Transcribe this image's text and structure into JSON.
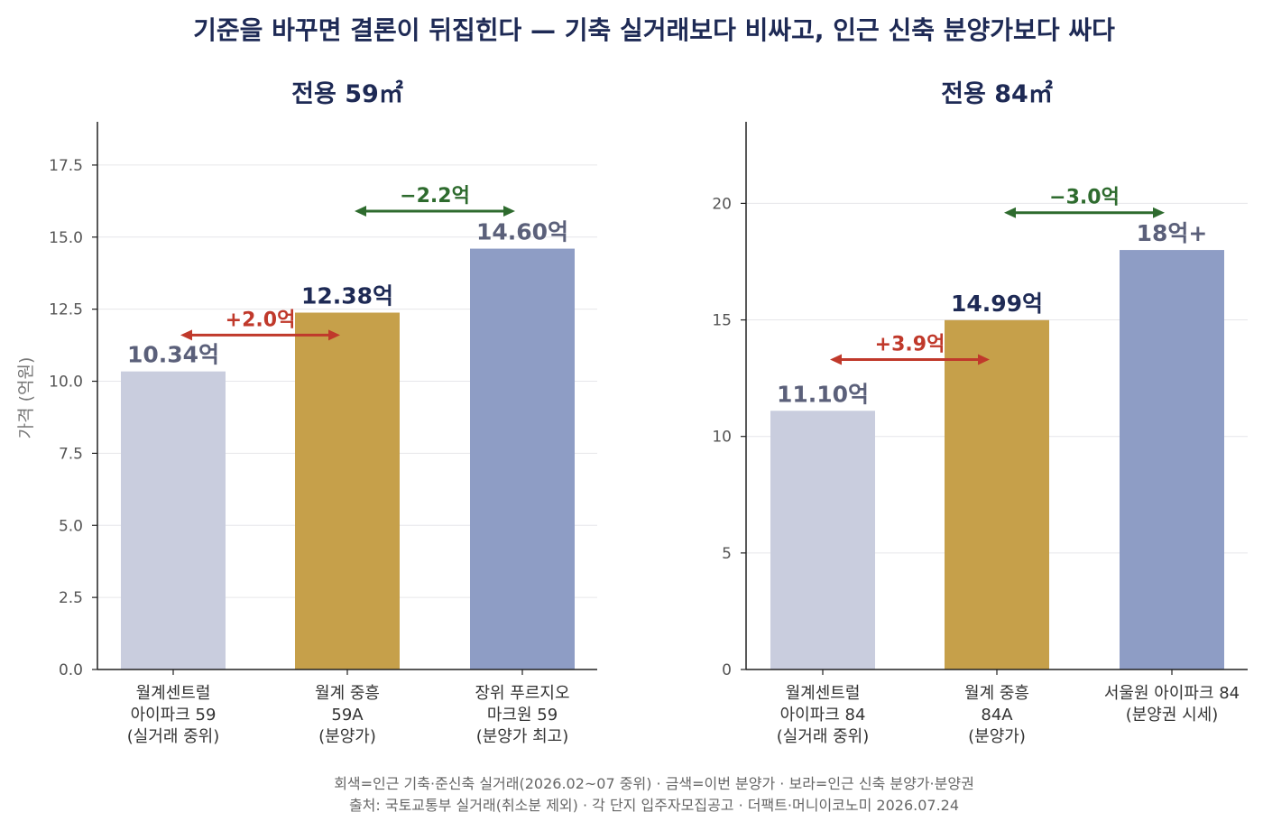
{
  "title": "기준을 바꾸면 결론이 뒤집힌다 — 기축 실거래보다 비싸고, 인근 신축 분양가보다 싸다",
  "ylabel": "가격 (억원)",
  "footer": {
    "line1": "회색=인근 기축·준신축 실거래(2026.02~07 중위) · 금색=이번 분양가 · 보라=인근 신축 분양가·분양권",
    "line2": "출처: 국토교통부 실거래(취소분 제외) · 각 단지 입주자모집공고 · 더팩트·머니이코노미 2026.07.24"
  },
  "colors": {
    "gray": "#c9cdde",
    "gold": "#c6a04a",
    "purple": "#8e9dc5",
    "plus": "#c0392b",
    "minus": "#2e6b2e",
    "title": "#1e2a55"
  },
  "chart_data": [
    {
      "type": "bar",
      "title": "전용 59㎡",
      "ylabel": "가격 (억원)",
      "ylim": [
        0,
        19
      ],
      "yticks": [
        "0.0",
        "2.5",
        "5.0",
        "7.5",
        "10.0",
        "12.5",
        "15.0",
        "17.5"
      ],
      "ytick_values": [
        0,
        2.5,
        5,
        7.5,
        10,
        12.5,
        15,
        17.5
      ],
      "grid": true,
      "categories": [
        [
          "월계센트럴",
          "아이파크 59",
          "(실거래 중위)"
        ],
        [
          "월계 중흥",
          "59A",
          "(분양가)"
        ],
        [
          "장위 푸르지오",
          "마크원 59",
          "(분양가 최고)"
        ]
      ],
      "values": [
        10.34,
        12.38,
        14.6
      ],
      "value_labels": [
        "10.34억",
        "12.38억",
        "14.60억"
      ],
      "bar_colors": [
        "gray",
        "gold",
        "purple"
      ],
      "annotations": [
        {
          "text": "+2.0억",
          "from": 0,
          "to": 1,
          "y": 11.6,
          "color": "plus"
        },
        {
          "text": "−2.2억",
          "from": 1,
          "to": 2,
          "y": 15.9,
          "color": "minus"
        }
      ]
    },
    {
      "type": "bar",
      "title": "전용 84㎡",
      "ylabel": "",
      "ylim": [
        0,
        23.5
      ],
      "yticks": [
        "0",
        "5",
        "10",
        "15",
        "20"
      ],
      "ytick_values": [
        0,
        5,
        10,
        15,
        20
      ],
      "grid": true,
      "categories": [
        [
          "월계센트럴",
          "아이파크 84",
          "(실거래 중위)"
        ],
        [
          "월계 중흥",
          "84A",
          "(분양가)"
        ],
        [
          "서울원 아이파크 84",
          "(분양권 시세)"
        ]
      ],
      "values": [
        11.1,
        14.99,
        18.0
      ],
      "value_labels": [
        "11.10억",
        "14.99억",
        "18억+"
      ],
      "bar_colors": [
        "gray",
        "gold",
        "purple"
      ],
      "annotations": [
        {
          "text": "+3.9억",
          "from": 0,
          "to": 1,
          "y": 13.3,
          "color": "plus"
        },
        {
          "text": "−3.0억",
          "from": 1,
          "to": 2,
          "y": 19.6,
          "color": "minus"
        }
      ]
    }
  ]
}
